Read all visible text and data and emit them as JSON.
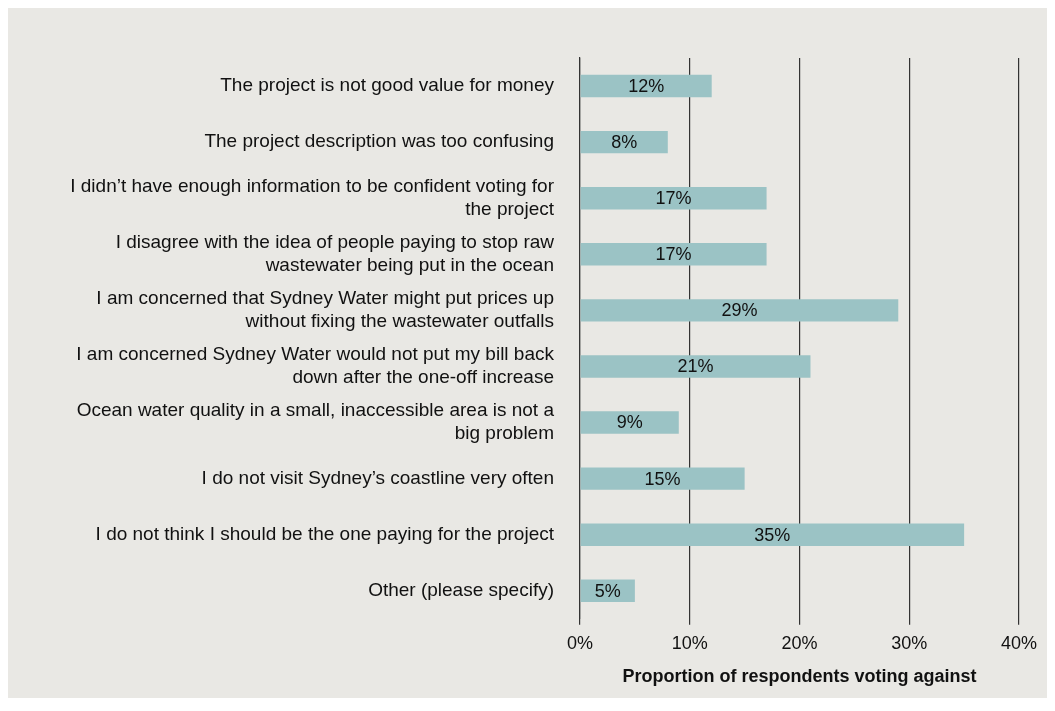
{
  "chart_data": {
    "type": "bar",
    "orientation": "horizontal",
    "xlabel": "Proportion of respondents voting against",
    "categories": [
      "The project is not good value for money",
      "The project description was too confusing",
      "I didn’t have enough information to be confident voting for the project",
      "I disagree with the idea of people paying to stop raw wastewater being put in the ocean",
      "I am concerned that Sydney Water might put prices up without fixing the wastewater outfalls",
      "I am concerned Sydney Water would not put my bill back down after the one-off increase",
      "Ocean water quality in a small, inaccessible area is not a big problem",
      "I do not visit Sydney’s coastline very often",
      "I do not think I should be the one paying for the project",
      "Other (please specify)"
    ],
    "values": [
      12,
      8,
      17,
      17,
      29,
      21,
      9,
      15,
      35,
      5
    ],
    "value_labels": [
      "12%",
      "8%",
      "17%",
      "17%",
      "29%",
      "21%",
      "9%",
      "15%",
      "35%",
      "5%"
    ],
    "color": "#9bc3c5",
    "xlim": [
      0,
      40
    ],
    "xticks": [
      {
        "value": 0,
        "label": "0%"
      },
      {
        "value": 10,
        "label": "10%"
      },
      {
        "value": 20,
        "label": "20%"
      },
      {
        "value": 30,
        "label": "30%"
      },
      {
        "value": 40,
        "label": "40%"
      }
    ],
    "grid": "x",
    "legend": false
  }
}
